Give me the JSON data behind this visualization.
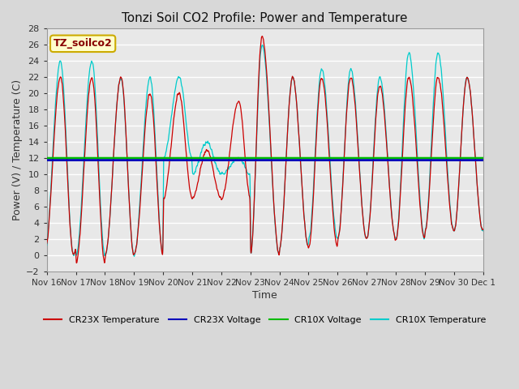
{
  "title": "Tonzi Soil CO2 Profile: Power and Temperature",
  "ylabel": "Power (V) / Temperature (C)",
  "xlabel": "Time",
  "ylim": [
    -2,
    28
  ],
  "yticks": [
    -2,
    0,
    2,
    4,
    6,
    8,
    10,
    12,
    14,
    16,
    18,
    20,
    22,
    24,
    26,
    28
  ],
  "cr23x_voltage_level": 11.75,
  "cr10x_voltage_level": 12.0,
  "cr23x_color": "#cc0000",
  "cr10x_color": "#00cccc",
  "cr23x_voltage_color": "#0000bb",
  "cr10x_voltage_color": "#00bb00",
  "bg_color": "#d8d8d8",
  "plot_bg_color": "#e8e8e8",
  "label_box_text": "TZ_soilco2",
  "label_box_bg": "#ffffcc",
  "label_box_border": "#ccaa00",
  "legend_labels": [
    "CR23X Temperature",
    "CR23X Voltage",
    "CR10X Voltage",
    "CR10X Temperature"
  ],
  "xtick_labels": [
    "Nov 16",
    "Nov 17",
    "Nov 18",
    "Nov 19",
    "Nov 20",
    "Nov 21",
    "Nov 22",
    "Nov 23",
    "Nov 24",
    "Nov 25",
    "Nov 26",
    "Nov 27",
    "Nov 28",
    "Nov 29",
    "Nov 30",
    "Dec 1"
  ],
  "figsize": [
    6.4,
    4.8
  ],
  "dpi": 100
}
